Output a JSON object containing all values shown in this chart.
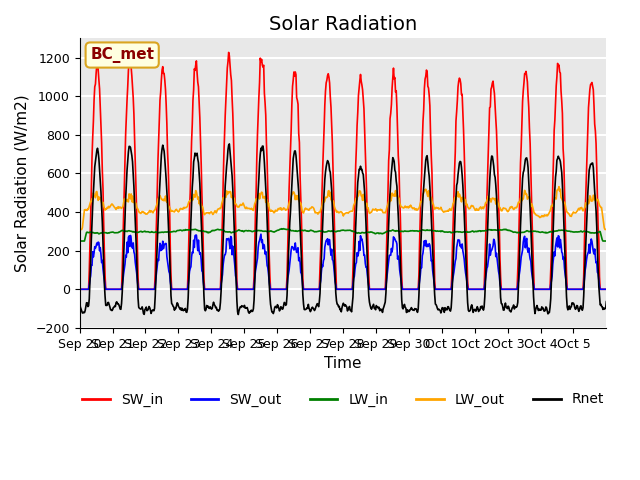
{
  "title": "Solar Radiation",
  "xlabel": "Time",
  "ylabel": "Solar Radiation (W/m2)",
  "ylim": [
    -200,
    1300
  ],
  "yticks": [
    -200,
    0,
    200,
    400,
    600,
    800,
    1000,
    1200
  ],
  "x_labels": [
    "Sep 20",
    "Sep 21",
    "Sep 22",
    "Sep 23",
    "Sep 24",
    "Sep 25",
    "Sep 26",
    "Sep 27",
    "Sep 28",
    "Sep 29",
    "Sep 30",
    "Oct 1",
    "Oct 2",
    "Oct 3",
    "Oct 4",
    "Oct 5"
  ],
  "n_days": 16,
  "pts_per_day": 48,
  "legend_labels": [
    "SW_in",
    "SW_out",
    "LW_in",
    "LW_out",
    "Rnet"
  ],
  "line_colors": [
    "red",
    "blue",
    "green",
    "orange",
    "black"
  ],
  "bc_met_label": "BC_met",
  "bc_met_fontsize": 11,
  "background_color": "#e8e8e8",
  "grid_color": "white",
  "title_fontsize": 14,
  "axis_label_fontsize": 11,
  "tick_fontsize": 9,
  "legend_fontsize": 10
}
